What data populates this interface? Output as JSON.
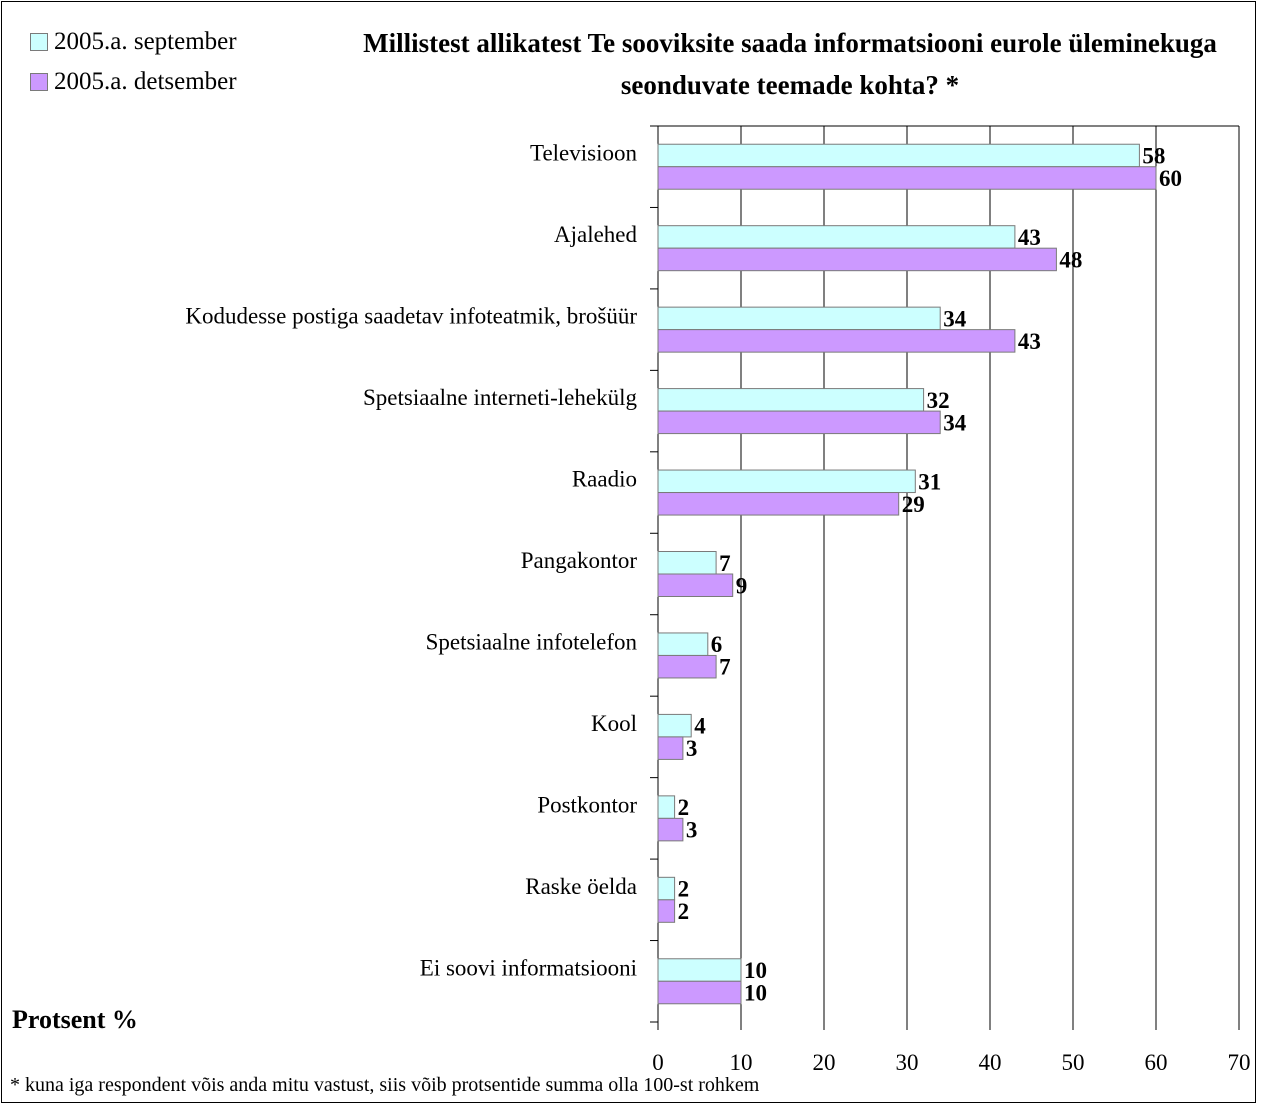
{
  "chart_data": {
    "type": "bar",
    "orientation": "horizontal",
    "title": "Millistest allikatest Te  sooviksite saada informatsiooni eurole üleminekuga seonduvate teemade kohta? *",
    "xlabel": "Protsent %",
    "ylabel": "",
    "xlim": [
      0,
      70
    ],
    "xticks": [
      0,
      10,
      20,
      30,
      40,
      50,
      60,
      70
    ],
    "grid": true,
    "legend_position": "top-left",
    "categories": [
      "Televisioon",
      "Ajalehed",
      "Kodudesse postiga saadetav infoteatmik, brošüür",
      "Spetsiaalne interneti-lehekülg",
      "Raadio",
      "Pangakontor",
      "Spetsiaalne infotelefon",
      "Kool",
      "Postkontor",
      "Raske öelda",
      "Ei soovi informatsiooni"
    ],
    "series": [
      {
        "name": "2005.a. september",
        "color": "#ccffff",
        "values": [
          58,
          43,
          34,
          32,
          31,
          7,
          6,
          4,
          2,
          2,
          10
        ]
      },
      {
        "name": "2005.a. detsember",
        "color": "#cc99ff",
        "values": [
          60,
          48,
          43,
          34,
          29,
          9,
          7,
          3,
          3,
          2,
          10
        ]
      }
    ],
    "footnote": "* kuna iga respondent võis anda   mitu vastust, siis võib protsentide summa olla 100-st rohkem"
  }
}
